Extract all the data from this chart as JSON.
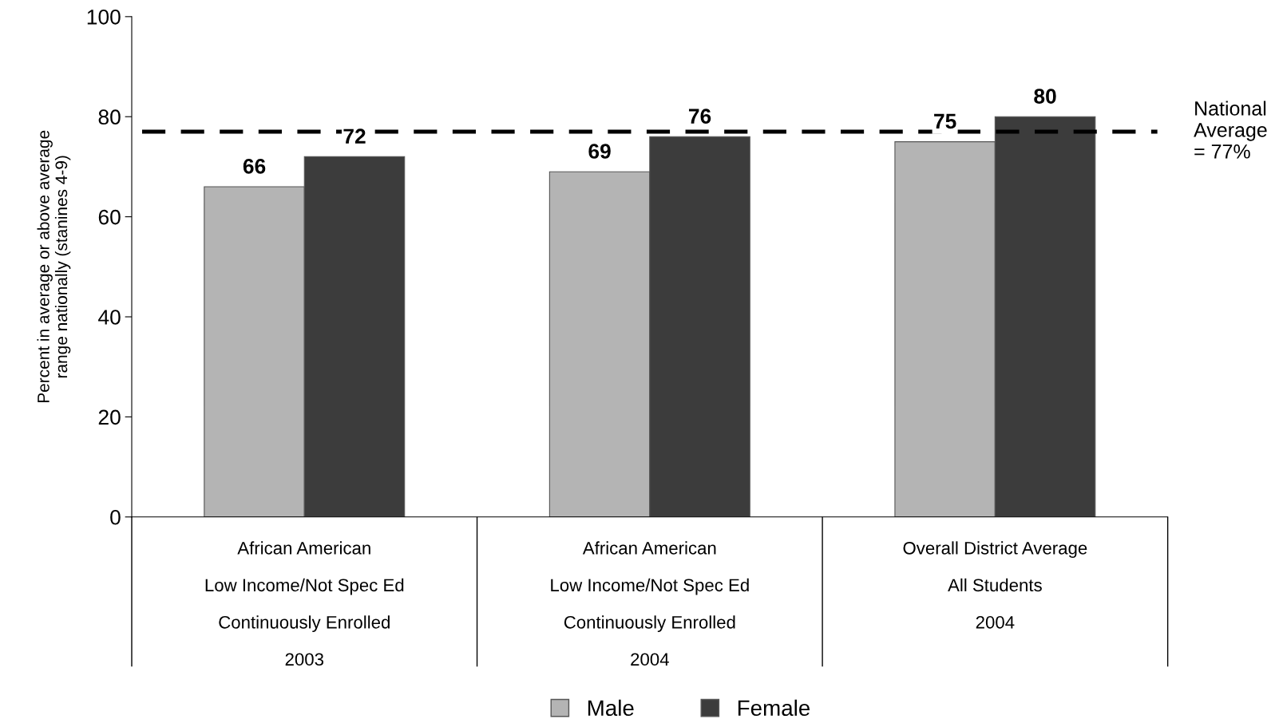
{
  "chart_data": {
    "type": "bar",
    "ylabel": "Percent in average or above average\nrange nationally (stanines 4-9)",
    "categories": [
      "African American\nLow Income/Not Spec Ed\nContinuously Enrolled\n2003",
      "African American\nLow Income/Not Spec Ed\nContinuously Enrolled\n2004",
      "Overall District Average\nAll Students\n2004"
    ],
    "series": [
      {
        "name": "Male",
        "color": "#b4b4b4",
        "values": [
          66,
          69,
          75
        ]
      },
      {
        "name": "Female",
        "color": "#3c3c3c",
        "values": [
          72,
          76,
          80
        ]
      }
    ],
    "ylim": [
      0,
      100
    ],
    "yticks": [
      0,
      20,
      40,
      60,
      80,
      100
    ],
    "grid": false,
    "legend": "bottom",
    "data_labels": true,
    "ref_lines": [
      {
        "axis": "y",
        "value": 77,
        "label": "National\nAverage\n= 77%",
        "color": "#000000",
        "line_style": "dashed"
      }
    ]
  }
}
